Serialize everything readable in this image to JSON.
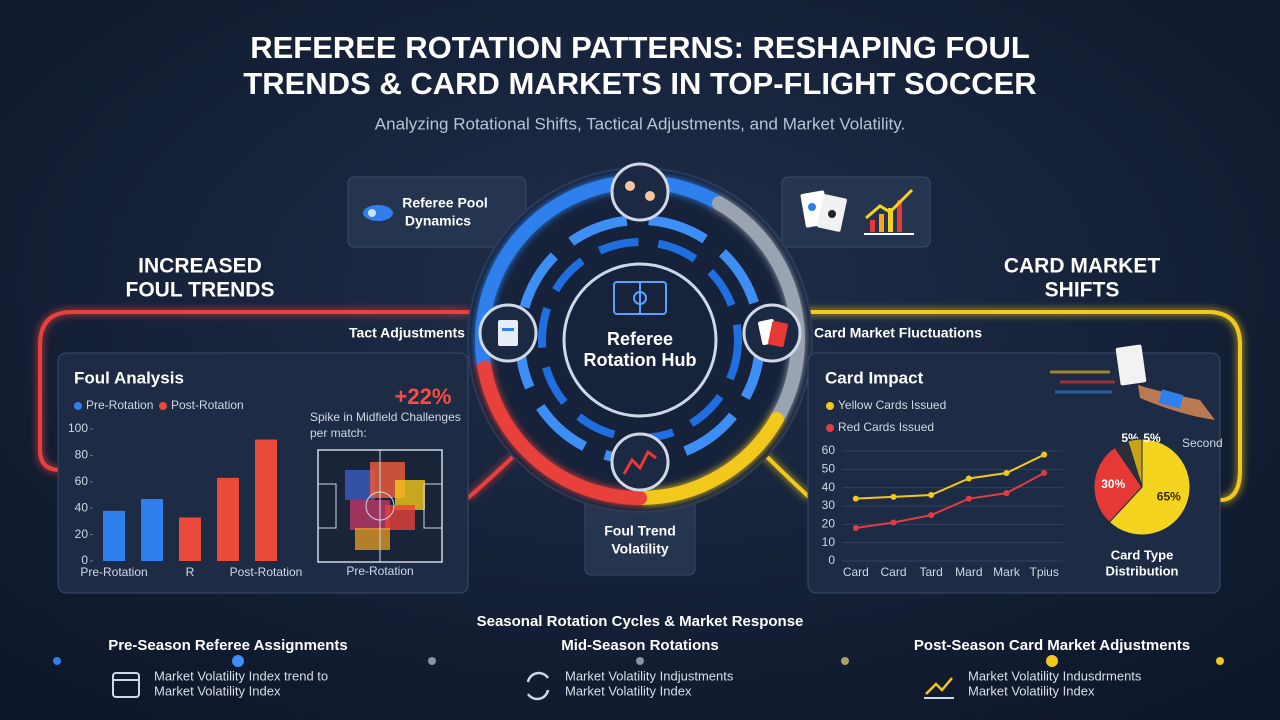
{
  "header": {
    "title_lines": [
      "REFEREE ROTATION PATTERNS: RESHAPING FOUL",
      "TRENDS & CARD MARKETS IN TOP-FLIGHT SOCCER"
    ],
    "subtitle": "Analyzing Rotational Shifts, Tactical Adjustments, and Market Volatility."
  },
  "hub": {
    "label_lines": [
      "Referee",
      "Rotation Hub"
    ],
    "nodes": [
      {
        "label_lines": [
          "Referee Pool",
          "Dynamics"
        ]
      },
      {
        "label": "Tact Adjustments"
      },
      {
        "label": "Card Market Fluctuations"
      },
      {
        "label_lines": [
          "Foul Trend",
          "Volatility"
        ]
      }
    ]
  },
  "left_heading_lines": [
    "INCREASED",
    "FOUL TRENDS"
  ],
  "right_heading_lines": [
    "CARD MARKET",
    "SHIFTS"
  ],
  "chart_data": [
    {
      "type": "bar",
      "title": "Foul Analysis",
      "categories": [
        "Pre-Rotation",
        null,
        "R",
        null,
        "Post-Rotation"
      ],
      "series": [
        {
          "name": "Pre-Rotation",
          "color": "#2f80ed",
          "values": [
            38,
            47,
            null,
            null,
            null
          ]
        },
        {
          "name": "Post-Rotation",
          "color": "#ea4a3a",
          "values": [
            null,
            null,
            33,
            63,
            92
          ]
        }
      ],
      "ylim": [
        0,
        100
      ],
      "yticks": [
        0,
        20,
        40,
        60,
        80,
        100
      ],
      "annotation": {
        "value_text": "+22%",
        "text_lines": [
          "Spike in Midfield Challenges",
          "per match:"
        ]
      },
      "inset_label": "Pre-Rotation"
    },
    {
      "type": "line",
      "title": "Card Impact",
      "categories": [
        "Card",
        "Card",
        "Tard",
        "Mard",
        "Mark",
        "Tpius"
      ],
      "series": [
        {
          "name": "Yellow Cards Issued",
          "color": "#f2c81d",
          "values": [
            34,
            35,
            36,
            45,
            48,
            58
          ]
        },
        {
          "name": "Red Cards Issued",
          "color": "#e03c44",
          "values": [
            18,
            21,
            25,
            34,
            37,
            48
          ]
        }
      ],
      "ylim": [
        0,
        60
      ],
      "yticks": [
        0,
        10,
        20,
        30,
        40,
        50,
        60
      ],
      "grid": true
    },
    {
      "type": "pie",
      "title_lines": [
        "Card Type",
        "Distribution"
      ],
      "values": [
        65,
        30,
        5,
        5
      ],
      "value_labels": [
        "65%",
        "30%",
        "5%",
        "5%"
      ],
      "colors": [
        "#f5d420",
        "#e53935",
        "#2b2f3a",
        "#c7a31a"
      ],
      "annotation": "Second"
    }
  ],
  "timeline": {
    "title": "Seasonal Rotation Cycles & Market Response",
    "phases": [
      {
        "title": "Pre-Season Referee Assignments",
        "lines": [
          "Market Volatility Index trend to",
          "Market Volatility Index"
        ]
      },
      {
        "title": "Mid-Season Rotations",
        "lines": [
          "Market Volatility Indjustments",
          "Market Volatility Index"
        ]
      },
      {
        "title": "Post-Season Card Market Adjustments",
        "lines": [
          "Market Volatility Indusdrments",
          "Market Volatility Index"
        ]
      }
    ]
  }
}
